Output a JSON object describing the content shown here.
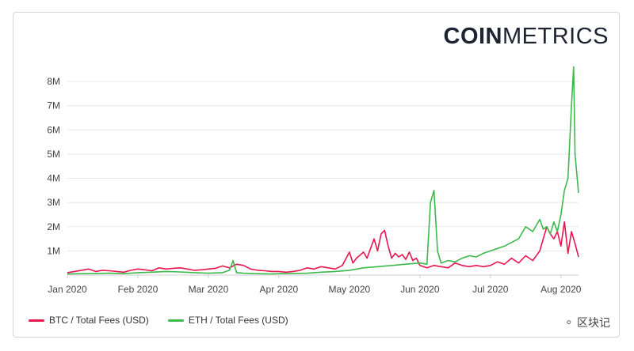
{
  "brand": {
    "logo_bold": "COIN",
    "logo_light": "METRICS"
  },
  "watermark": {
    "text": "区块记",
    "icon": "wechat-icon"
  },
  "colors": {
    "btc": "#e8164f",
    "eth": "#3db84a",
    "grid": "#e8e8e8",
    "axis": "#444444"
  },
  "chart_data": {
    "type": "line",
    "title": "",
    "xlabel": "",
    "ylabel": "",
    "x_range": [
      0,
      7.25
    ],
    "ylim": [
      0,
      8500000
    ],
    "x_ticks": [
      {
        "label": "Jan 2020",
        "value": 0
      },
      {
        "label": "Feb 2020",
        "value": 1
      },
      {
        "label": "Mar 2020",
        "value": 2
      },
      {
        "label": "Apr 2020",
        "value": 3
      },
      {
        "label": "May 2020",
        "value": 4
      },
      {
        "label": "Jun 2020",
        "value": 5
      },
      {
        "label": "Jul 2020",
        "value": 6
      },
      {
        "label": "Aug 2020",
        "value": 7
      }
    ],
    "y_ticks": [
      {
        "label": "1M",
        "value": 1000000
      },
      {
        "label": "2M",
        "value": 2000000
      },
      {
        "label": "3M",
        "value": 3000000
      },
      {
        "label": "4M",
        "value": 4000000
      },
      {
        "label": "5M",
        "value": 5000000
      },
      {
        "label": "6M",
        "value": 6000000
      },
      {
        "label": "7M",
        "value": 7000000
      },
      {
        "label": "8M",
        "value": 8000000
      }
    ],
    "series": [
      {
        "name": "BTC / Total Fees (USD)",
        "key": "btc",
        "x": [
          0,
          0.1,
          0.2,
          0.3,
          0.4,
          0.5,
          0.6,
          0.7,
          0.8,
          0.9,
          1.0,
          1.1,
          1.2,
          1.3,
          1.4,
          1.5,
          1.6,
          1.7,
          1.8,
          1.9,
          2.0,
          2.1,
          2.2,
          2.3,
          2.4,
          2.5,
          2.6,
          2.7,
          2.8,
          2.9,
          3.0,
          3.1,
          3.2,
          3.3,
          3.4,
          3.5,
          3.6,
          3.7,
          3.8,
          3.9,
          4.0,
          4.05,
          4.1,
          4.2,
          4.25,
          4.3,
          4.35,
          4.4,
          4.45,
          4.5,
          4.55,
          4.6,
          4.65,
          4.7,
          4.75,
          4.8,
          4.85,
          4.9,
          4.95,
          5.0,
          5.05,
          5.1,
          5.2,
          5.3,
          5.4,
          5.5,
          5.6,
          5.7,
          5.8,
          5.9,
          6.0,
          6.1,
          6.2,
          6.3,
          6.4,
          6.5,
          6.6,
          6.7,
          6.75,
          6.8,
          6.85,
          6.9,
          6.95,
          7.0,
          7.05,
          7.1,
          7.15,
          7.2,
          7.25
        ],
        "values": [
          100000,
          150000,
          200000,
          250000,
          150000,
          200000,
          180000,
          150000,
          120000,
          200000,
          250000,
          220000,
          180000,
          300000,
          250000,
          280000,
          300000,
          250000,
          200000,
          220000,
          250000,
          280000,
          380000,
          300000,
          450000,
          400000,
          250000,
          200000,
          180000,
          150000,
          150000,
          120000,
          150000,
          200000,
          300000,
          250000,
          350000,
          300000,
          250000,
          400000,
          950000,
          500000,
          700000,
          950000,
          700000,
          1100000,
          1500000,
          1000000,
          1700000,
          1850000,
          1200000,
          700000,
          900000,
          750000,
          850000,
          650000,
          950000,
          600000,
          700000,
          400000,
          350000,
          300000,
          400000,
          350000,
          300000,
          500000,
          400000,
          350000,
          400000,
          350000,
          400000,
          550000,
          450000,
          700000,
          500000,
          800000,
          600000,
          1000000,
          1500000,
          2000000,
          1700000,
          1500000,
          1800000,
          1200000,
          2200000,
          900000,
          1800000,
          1300000,
          750000
        ]
      },
      {
        "name": "ETH / Total Fees (USD)",
        "key": "eth",
        "x": [
          0,
          0.2,
          0.4,
          0.6,
          0.8,
          1.0,
          1.2,
          1.4,
          1.6,
          1.8,
          2.0,
          2.2,
          2.3,
          2.35,
          2.4,
          2.5,
          2.7,
          2.9,
          3.0,
          3.2,
          3.4,
          3.6,
          3.8,
          4.0,
          4.2,
          4.4,
          4.6,
          4.8,
          5.0,
          5.1,
          5.15,
          5.2,
          5.25,
          5.3,
          5.4,
          5.5,
          5.6,
          5.7,
          5.8,
          5.9,
          6.0,
          6.2,
          6.4,
          6.5,
          6.6,
          6.7,
          6.75,
          6.8,
          6.85,
          6.9,
          6.95,
          7.0,
          7.05,
          7.1,
          7.15,
          7.18,
          7.2,
          7.25
        ],
        "values": [
          50000,
          60000,
          70000,
          80000,
          60000,
          100000,
          120000,
          150000,
          130000,
          100000,
          80000,
          100000,
          200000,
          600000,
          100000,
          80000,
          60000,
          50000,
          60000,
          70000,
          80000,
          120000,
          150000,
          200000,
          300000,
          350000,
          400000,
          450000,
          500000,
          450000,
          3000000,
          3500000,
          1000000,
          500000,
          600000,
          550000,
          700000,
          800000,
          750000,
          900000,
          1000000,
          1200000,
          1500000,
          2000000,
          1800000,
          2300000,
          1900000,
          2000000,
          1700000,
          2200000,
          1800000,
          2500000,
          3500000,
          4000000,
          7000000,
          8600000,
          5000000,
          3400000
        ]
      }
    ]
  }
}
